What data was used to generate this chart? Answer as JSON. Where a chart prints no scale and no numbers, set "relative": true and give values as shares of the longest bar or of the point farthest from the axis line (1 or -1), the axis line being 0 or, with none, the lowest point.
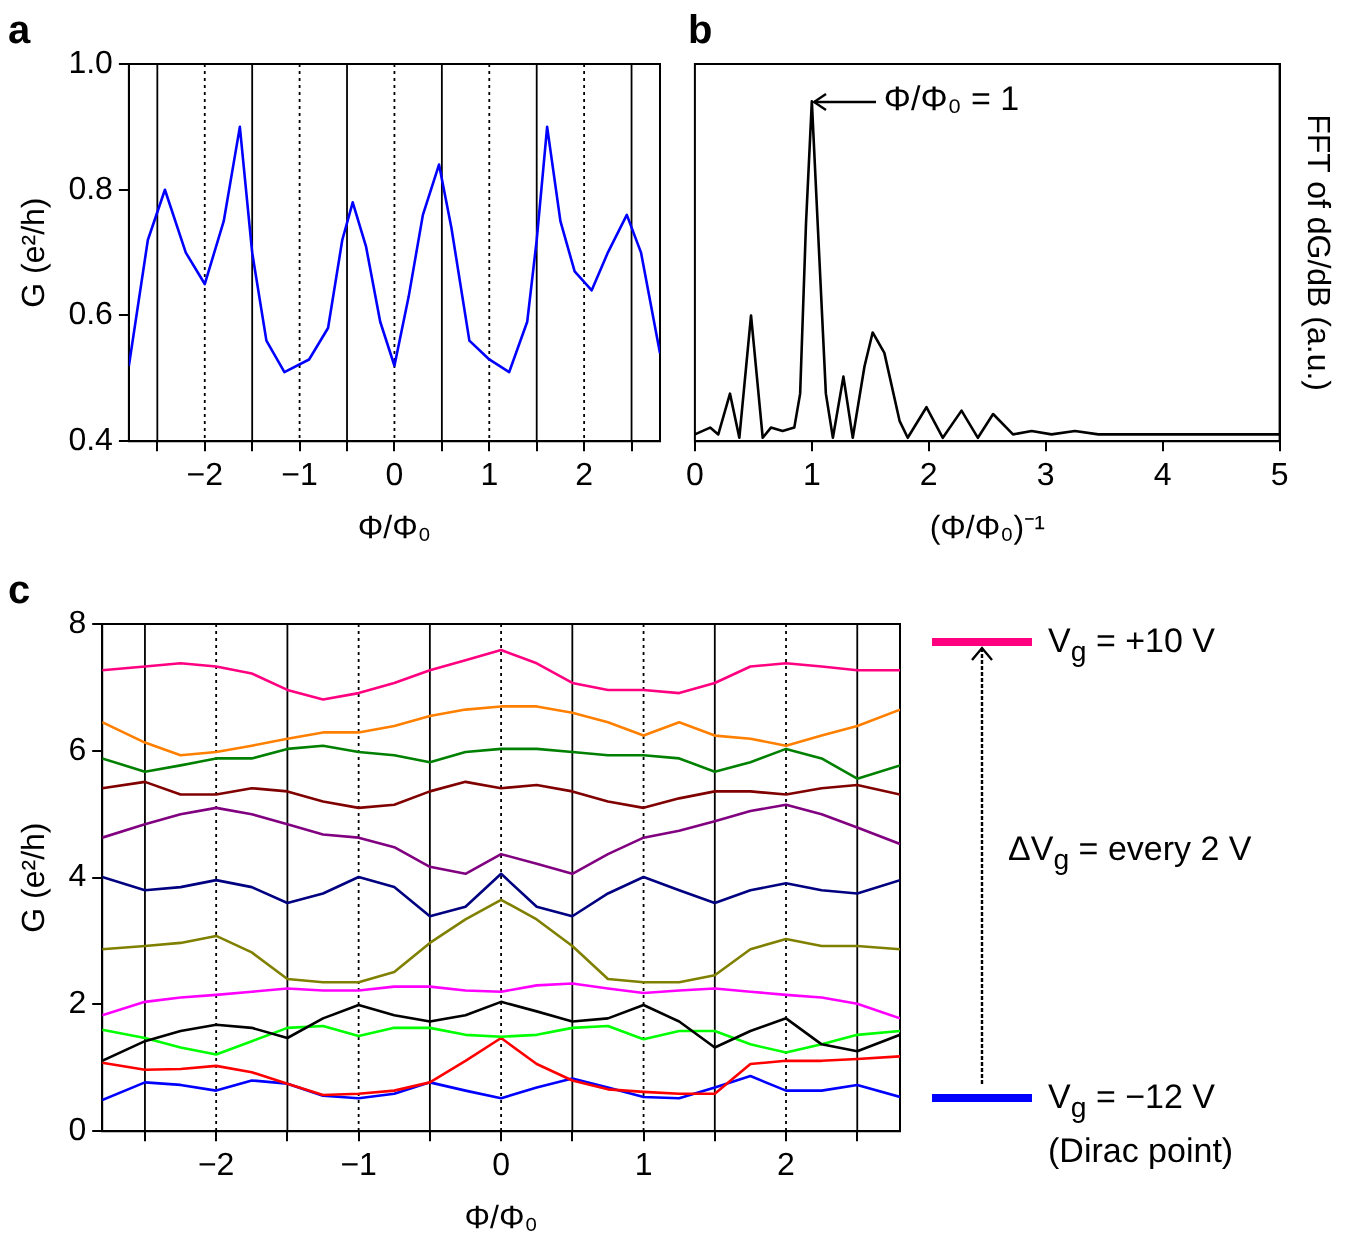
{
  "chart_data": [
    {
      "type": "line",
      "title": "a",
      "xlabel": "Φ/Φ₀",
      "ylabel": "G (e²/h)",
      "xlim": [
        -2.8,
        2.8
      ],
      "ylim": [
        0.4,
        1.0
      ],
      "xticks": [
        {
          "value": -2.5,
          "label": null
        },
        {
          "value": -2,
          "label": "−2"
        },
        {
          "value": -1.5,
          "label": null
        },
        {
          "value": -1,
          "label": "−1"
        },
        {
          "value": -0.5,
          "label": null
        },
        0,
        {
          "value": 0.5,
          "label": null
        },
        1,
        {
          "value": 1.5,
          "label": null
        },
        2,
        {
          "value": 2.5,
          "label": null
        }
      ],
      "yticks": [
        {
          "value": 0.4,
          "label": "0.4"
        },
        {
          "value": 0.6,
          "label": "0.6"
        },
        {
          "value": 0.8,
          "label": "0.8"
        },
        {
          "value": 1.0,
          "label": "1.0"
        }
      ],
      "grid": "x",
      "marker": "none",
      "x": [
        -2.8,
        -2.6,
        -2.42,
        -2.2,
        -2.0,
        -1.8,
        -1.63,
        -1.5,
        -1.35,
        -1.16,
        -0.9,
        -0.7,
        -0.55,
        -0.44,
        -0.3,
        -0.15,
        0,
        0.15,
        0.3,
        0.47,
        0.6,
        0.79,
        1.0,
        1.21,
        1.4,
        1.5,
        1.61,
        1.75,
        1.9,
        2.08,
        2.25,
        2.45,
        2.6,
        2.8
      ],
      "series": [
        {
          "color": "#0000ff",
          "values": [
            0.52,
            0.72,
            0.8,
            0.7,
            0.65,
            0.75,
            0.9,
            0.7,
            0.56,
            0.51,
            0.53,
            0.58,
            0.72,
            0.78,
            0.71,
            0.59,
            0.52,
            0.63,
            0.76,
            0.84,
            0.74,
            0.56,
            0.53,
            0.51,
            0.59,
            0.72,
            0.9,
            0.75,
            0.67,
            0.64,
            0.7,
            0.76,
            0.7,
            0.54
          ]
        }
      ]
    },
    {
      "type": "line",
      "title": "b",
      "xlabel": "(Φ/Φ₀)⁻¹",
      "y2label": "FFT of dG/dB (a.u.)",
      "relative": true,
      "xlim": [
        0,
        5
      ],
      "xticks": [
        0,
        1,
        2,
        3,
        4,
        5
      ],
      "marker": "none",
      "annotations": [
        "Φ/Φ₀ = 1"
      ],
      "x": [
        0,
        0.13,
        0.2,
        0.3,
        0.38,
        0.48,
        0.58,
        0.65,
        0.75,
        0.85,
        0.9,
        0.95,
        1.0,
        1.05,
        1.12,
        1.18,
        1.27,
        1.35,
        1.45,
        1.52,
        1.62,
        1.75,
        1.82,
        1.98,
        2.12,
        2.28,
        2.42,
        2.55,
        2.72,
        2.88,
        3.05,
        3.25,
        3.45,
        3.65,
        4,
        5
      ],
      "series": [
        {
          "color": "#000000",
          "axis": "y2",
          "values": [
            0.02,
            0.04,
            0.02,
            0.14,
            0.01,
            0.37,
            0.01,
            0.04,
            0.03,
            0.04,
            0.14,
            0.64,
            1,
            0.64,
            0.14,
            0.01,
            0.19,
            0.01,
            0.22,
            0.32,
            0.26,
            0.06,
            0.01,
            0.1,
            0.01,
            0.09,
            0.01,
            0.08,
            0.02,
            0.03,
            0.02,
            0.03,
            0.02,
            0.02,
            0.02,
            0.02
          ]
        }
      ]
    },
    {
      "type": "line",
      "title": "c",
      "xlabel": "Φ/Φ₀",
      "ylabel": "G (e²/h)",
      "xlim": [
        -2.8,
        2.8
      ],
      "ylim": [
        0,
        8
      ],
      "xticks": [
        {
          "value": -2.5,
          "label": null
        },
        {
          "value": -2,
          "label": "−2"
        },
        {
          "value": -1.5,
          "label": null
        },
        {
          "value": -1,
          "label": "−1"
        },
        {
          "value": -0.5,
          "label": null
        },
        0,
        {
          "value": 0.5,
          "label": null
        },
        1,
        {
          "value": 1.5,
          "label": null
        },
        2,
        {
          "value": 2.5,
          "label": null
        }
      ],
      "yticks": [
        0,
        2,
        4,
        6,
        8
      ],
      "grid": "x",
      "marker": "none",
      "legend": "right",
      "annotations": [
        "ΔV$_{g}$ = every 2 V"
      ],
      "x": [
        -2.8,
        -2.5,
        -2.25,
        -2,
        -1.75,
        -1.5,
        -1.25,
        -1,
        -0.75,
        -0.5,
        -0.25,
        0,
        0.25,
        0.5,
        0.75,
        1,
        1.25,
        1.5,
        1.75,
        2,
        2.25,
        2.5,
        2.8
      ],
      "series": [
        {
          "name": "V$_{g}$ = +10 V",
          "color": "#ff0080",
          "values": [
            7.27,
            7.33,
            7.38,
            7.33,
            7.22,
            6.96,
            6.81,
            6.91,
            7.07,
            7.27,
            7.43,
            7.59,
            7.38,
            7.07,
            6.96,
            6.96,
            6.91,
            7.07,
            7.33,
            7.38,
            7.33,
            7.27,
            7.27
          ]
        },
        {
          "color": "#ff8000",
          "values": [
            6.45,
            6.13,
            5.93,
            5.98,
            6.08,
            6.19,
            6.29,
            6.29,
            6.39,
            6.55,
            6.65,
            6.7,
            6.7,
            6.6,
            6.45,
            6.24,
            6.45,
            6.24,
            6.19,
            6.08,
            6.24,
            6.39,
            6.65
          ]
        },
        {
          "color": "#008000",
          "values": [
            5.88,
            5.67,
            5.77,
            5.88,
            5.88,
            6.03,
            6.08,
            5.98,
            5.93,
            5.82,
            5.98,
            6.03,
            6.03,
            5.98,
            5.93,
            5.93,
            5.88,
            5.67,
            5.82,
            6.03,
            5.88,
            5.56,
            5.77
          ]
        },
        {
          "color": "#800000",
          "values": [
            5.41,
            5.51,
            5.31,
            5.31,
            5.41,
            5.36,
            5.2,
            5.1,
            5.15,
            5.36,
            5.51,
            5.41,
            5.46,
            5.36,
            5.2,
            5.1,
            5.25,
            5.36,
            5.36,
            5.31,
            5.41,
            5.46,
            5.31
          ]
        },
        {
          "color": "#800080",
          "values": [
            4.63,
            4.84,
            5.0,
            5.1,
            5.0,
            4.84,
            4.68,
            4.63,
            4.48,
            4.17,
            4.06,
            4.37,
            4.22,
            4.06,
            4.37,
            4.63,
            4.74,
            4.89,
            5.05,
            5.15,
            5.0,
            4.79,
            4.53
          ]
        },
        {
          "color": "#000080",
          "values": [
            4.01,
            3.8,
            3.85,
            3.96,
            3.85,
            3.6,
            3.75,
            4.01,
            3.85,
            3.39,
            3.54,
            4.06,
            3.54,
            3.39,
            3.75,
            4.01,
            3.8,
            3.6,
            3.8,
            3.91,
            3.8,
            3.75,
            3.96
          ]
        },
        {
          "color": "#808000",
          "values": [
            2.87,
            2.92,
            2.97,
            3.08,
            2.82,
            2.4,
            2.35,
            2.35,
            2.51,
            2.97,
            3.34,
            3.65,
            3.34,
            2.92,
            2.4,
            2.35,
            2.35,
            2.46,
            2.87,
            3.03,
            2.92,
            2.92,
            2.87
          ]
        },
        {
          "color": "#ff00ff",
          "values": [
            1.83,
            2.04,
            2.11,
            2.15,
            2.2,
            2.25,
            2.22,
            2.22,
            2.28,
            2.28,
            2.22,
            2.2,
            2.3,
            2.33,
            2.25,
            2.18,
            2.22,
            2.25,
            2.2,
            2.15,
            2.11,
            2.01,
            1.78
          ]
        },
        {
          "color": "#000000",
          "values": [
            1.11,
            1.42,
            1.58,
            1.68,
            1.63,
            1.47,
            1.78,
            1.99,
            1.83,
            1.73,
            1.83,
            2.04,
            1.89,
            1.73,
            1.78,
            1.99,
            1.73,
            1.32,
            1.58,
            1.78,
            1.37,
            1.26,
            1.52
          ]
        },
        {
          "color": "#00ff00",
          "values": [
            1.6,
            1.47,
            1.32,
            1.21,
            1.42,
            1.63,
            1.66,
            1.5,
            1.63,
            1.63,
            1.52,
            1.49,
            1.52,
            1.63,
            1.66,
            1.45,
            1.58,
            1.58,
            1.37,
            1.24,
            1.37,
            1.52,
            1.58
          ]
        },
        {
          "color": "#ff0000",
          "values": [
            1.08,
            0.97,
            0.98,
            1.03,
            0.93,
            0.75,
            0.57,
            0.59,
            0.64,
            0.77,
            1.11,
            1.47,
            1.06,
            0.8,
            0.66,
            0.62,
            0.59,
            0.59,
            1.06,
            1.11,
            1.11,
            1.14,
            1.18
          ]
        },
        {
          "name": "V$_{g}$ = −12 V (Dirac point)",
          "color": "#0000ff",
          "values": [
            0.49,
            0.77,
            0.73,
            0.64,
            0.8,
            0.75,
            0.56,
            0.52,
            0.59,
            0.77,
            0.64,
            0.52,
            0.69,
            0.83,
            0.69,
            0.54,
            0.52,
            0.69,
            0.87,
            0.64,
            0.64,
            0.73,
            0.54
          ]
        }
      ]
    }
  ]
}
